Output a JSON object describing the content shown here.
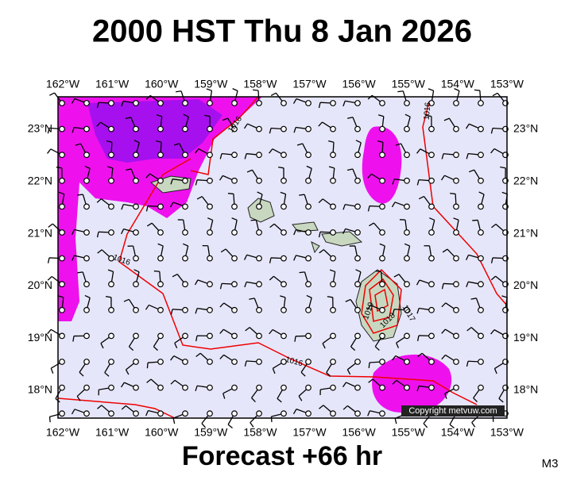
{
  "header": {
    "title": "2000 HST Thu 8 Jan 2026"
  },
  "footer": {
    "forecast": "Forecast +66 hr",
    "model": "M3"
  },
  "map": {
    "longitude_labels": [
      "162°W",
      "161°W",
      "160°W",
      "159°W",
      "158°W",
      "157°W",
      "156°W",
      "155°W",
      "154°W",
      "153°W"
    ],
    "latitude_labels": [
      "23°N",
      "22°N",
      "21°N",
      "20°N",
      "19°N",
      "18°N"
    ],
    "isobar_labels": [
      "1016",
      "1016",
      "1016",
      "1016",
      "1019",
      "1018",
      "1017"
    ],
    "copyright": "Copyright metvuw.com"
  }
}
